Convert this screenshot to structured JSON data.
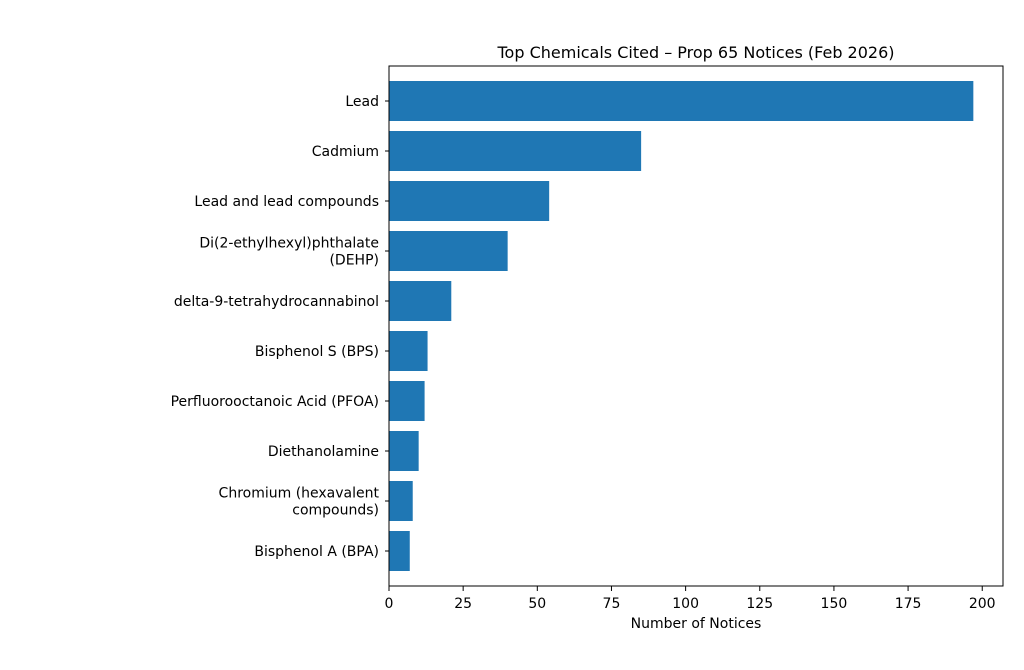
{
  "chart_data": {
    "type": "bar",
    "orientation": "horizontal",
    "title": "Top Chemicals Cited – Prop 65 Notices (Feb 2026)",
    "xlabel": "Number of Notices",
    "ylabel": "",
    "xlim": [
      0,
      207
    ],
    "xticks": [
      0,
      25,
      50,
      75,
      100,
      125,
      150,
      175,
      200
    ],
    "grid": false,
    "bar_color": "#1f77b4",
    "categories": [
      "Lead",
      "Cadmium",
      "Lead and lead compounds",
      "Di(2-ethylhexyl)phthalate (DEHP)",
      "delta-9-tetrahydrocannabinol",
      "Bisphenol S (BPS)",
      "Perfluorooctanoic Acid (PFOA)",
      "Diethanolamine",
      "Chromium (hexavalent compounds)",
      "Bisphenol A (BPA)"
    ],
    "category_lines": [
      [
        "Lead"
      ],
      [
        "Cadmium"
      ],
      [
        "Lead and lead compounds"
      ],
      [
        "Di(2-ethylhexyl)phthalate",
        "(DEHP)"
      ],
      [
        "delta-9-tetrahydrocannabinol"
      ],
      [
        "Bisphenol S (BPS)"
      ],
      [
        "Perfluorooctanoic Acid (PFOA)"
      ],
      [
        "Diethanolamine"
      ],
      [
        "Chromium (hexavalent",
        "compounds)"
      ],
      [
        "Bisphenol A (BPA)"
      ]
    ],
    "values": [
      197,
      85,
      54,
      40,
      21,
      13,
      12,
      10,
      8,
      7
    ]
  }
}
